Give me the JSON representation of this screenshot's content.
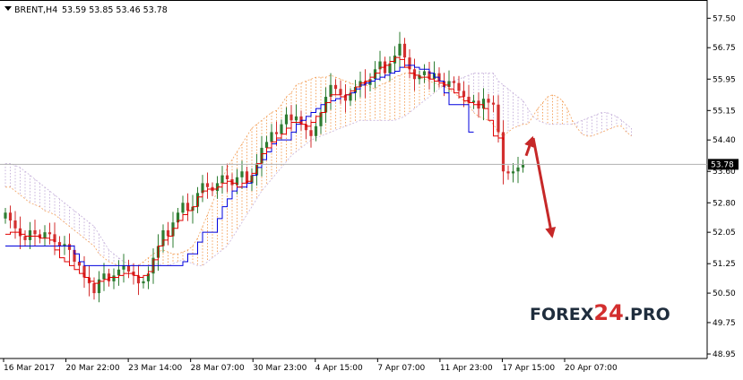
{
  "chart_data": {
    "type": "candlestick",
    "title": "",
    "symbol_label": "BRENT,H4",
    "ohlc_label": "53.59 53.85 53.46 53.78",
    "current_price": 53.78,
    "current_price_label": "53.78",
    "ylim": [
      48.95,
      57.85
    ],
    "y_ticks": [
      "57.50",
      "56.75",
      "55.95",
      "55.15",
      "54.40",
      "53.60",
      "52.80",
      "52.05",
      "51.25",
      "50.50",
      "49.75",
      "48.95"
    ],
    "x_ticks": [
      "16 Mar 2017",
      "20 Mar 22:00",
      "23 Mar 14:00",
      "28 Mar 07:00",
      "30 Mar 23:00",
      "4 Apr 15:00",
      "7 Apr 07:00",
      "11 Apr 23:00",
      "17 Apr 15:00",
      "20 Apr 07:00"
    ],
    "grid": false,
    "colors": {
      "bull": "#2e7d32",
      "bear": "#d32f2f",
      "tenkan": "#e00000",
      "kijun": "#0000dd",
      "cloud_bull": "#f4a460",
      "cloud_bear": "#c8b4dc",
      "arrow": "#c62828"
    },
    "close_series": [
      52.55,
      52.35,
      52.15,
      51.95,
      51.85,
      52.1,
      52.0,
      51.9,
      52.05,
      52.0,
      51.8,
      51.7,
      51.75,
      51.6,
      51.3,
      51.2,
      50.9,
      50.75,
      50.5,
      50.85,
      51.0,
      50.8,
      50.95,
      51.1,
      51.2,
      51.05,
      50.95,
      50.75,
      50.8,
      51.0,
      51.4,
      51.7,
      52.1,
      51.95,
      52.3,
      52.55,
      52.8,
      52.6,
      52.7,
      53.05,
      53.3,
      53.2,
      53.1,
      53.3,
      53.5,
      53.4,
      53.25,
      53.45,
      53.6,
      53.3,
      53.5,
      53.8,
      54.2,
      54.35,
      54.6,
      54.55,
      54.8,
      55.05,
      54.9,
      55.0,
      54.8,
      54.65,
      54.5,
      54.75,
      55.1,
      55.5,
      55.8,
      55.7,
      55.55,
      55.4,
      55.6,
      55.75,
      55.9,
      55.8,
      55.95,
      56.2,
      56.4,
      56.1,
      56.35,
      56.55,
      56.85,
      56.5,
      56.2,
      55.95,
      56.05,
      56.15,
      55.95,
      56.1,
      55.9,
      55.75,
      55.9,
      55.85,
      55.65,
      55.5,
      55.35,
      55.4,
      55.2,
      55.45,
      55.35,
      55.3,
      54.6,
      53.6,
      53.55,
      53.6,
      53.7,
      53.78
    ],
    "tenkan_series": [
      52.0,
      52.05,
      52.05,
      52.0,
      51.95,
      51.95,
      51.95,
      51.9,
      51.9,
      51.85,
      51.6,
      51.4,
      51.3,
      51.2,
      51.1,
      51.0,
      50.9,
      50.8,
      50.75,
      50.8,
      50.85,
      50.9,
      50.9,
      50.95,
      51.0,
      51.0,
      50.95,
      50.9,
      50.95,
      51.05,
      51.35,
      51.7,
      51.85,
      51.95,
      52.15,
      52.35,
      52.5,
      52.6,
      52.7,
      52.95,
      53.1,
      53.15,
      53.15,
      53.2,
      53.3,
      53.35,
      53.3,
      53.2,
      53.3,
      53.35,
      53.55,
      53.8,
      54.05,
      54.2,
      54.35,
      54.45,
      54.55,
      54.7,
      54.85,
      54.85,
      54.8,
      54.75,
      54.85,
      55.0,
      55.1,
      55.35,
      55.55,
      55.55,
      55.5,
      55.55,
      55.65,
      55.75,
      55.85,
      55.9,
      56.0,
      56.1,
      56.25,
      56.3,
      56.4,
      56.5,
      56.45,
      56.25,
      56.1,
      56.05,
      56.0,
      56.0,
      55.95,
      55.9,
      55.85,
      55.8,
      55.7,
      55.6,
      55.5,
      55.4,
      55.35,
      55.3,
      55.3,
      55.2,
      54.9,
      54.5,
      54.45,
      54.4
    ],
    "kijun_series": [
      51.7,
      51.7,
      51.7,
      51.7,
      51.7,
      51.7,
      51.7,
      51.7,
      51.7,
      51.7,
      51.7,
      51.7,
      51.7,
      51.7,
      51.5,
      51.3,
      51.2,
      51.2,
      51.2,
      51.2,
      51.2,
      51.2,
      51.2,
      51.2,
      51.2,
      51.2,
      51.2,
      51.2,
      51.2,
      51.2,
      51.2,
      51.2,
      51.2,
      51.2,
      51.2,
      51.2,
      51.3,
      51.5,
      51.5,
      51.8,
      52.05,
      52.05,
      52.05,
      52.4,
      52.7,
      52.9,
      53.1,
      53.2,
      53.2,
      53.3,
      53.5,
      53.7,
      53.9,
      54.1,
      54.3,
      54.4,
      54.4,
      54.4,
      54.6,
      54.8,
      54.9,
      55.0,
      55.1,
      55.2,
      55.3,
      55.35,
      55.4,
      55.45,
      55.5,
      55.55,
      55.6,
      55.7,
      55.8,
      55.85,
      55.9,
      55.95,
      56.0,
      56.05,
      56.1,
      56.15,
      56.25,
      56.3,
      56.3,
      56.25,
      56.2,
      56.2,
      56.1,
      56.0,
      55.9,
      55.6,
      55.3,
      55.3,
      55.3,
      55.3,
      54.6,
      54.6
    ],
    "cloud_span_a": [
      53.2,
      53.2,
      53.1,
      53.0,
      52.9,
      52.8,
      52.75,
      52.7,
      52.6,
      52.55,
      52.5,
      52.4,
      52.3,
      52.2,
      52.1,
      52.0,
      51.9,
      51.8,
      51.7,
      51.5,
      51.4,
      51.3,
      51.25,
      51.2,
      51.2,
      51.2,
      51.2,
      51.2,
      51.3,
      51.4,
      51.5,
      51.55,
      51.6,
      51.55,
      51.5,
      51.5,
      51.55,
      51.6,
      51.7,
      51.9,
      52.2,
      52.5,
      52.8,
      53.1,
      53.4,
      53.7,
      53.9,
      54.1,
      54.3,
      54.5,
      54.7,
      54.8,
      54.9,
      55.0,
      55.1,
      55.15,
      55.3,
      55.5,
      55.6,
      55.8,
      55.85,
      55.9,
      55.95,
      56.0,
      56.0,
      56.0,
      56.05,
      56.0,
      55.95,
      55.9,
      55.85,
      55.8,
      55.8,
      55.8,
      55.75,
      55.7,
      55.8,
      55.85,
      55.9,
      56.0,
      56.05,
      56.1,
      56.1,
      56.05,
      56.0,
      55.95,
      55.9,
      55.85,
      55.8,
      55.75,
      55.7,
      55.6,
      55.5,
      55.4,
      55.3,
      55.1,
      55.0,
      54.95,
      54.9,
      54.8,
      54.6,
      54.5,
      54.6,
      54.7,
      54.75,
      54.8,
      54.8,
      55.0,
      55.2,
      55.35,
      55.5,
      55.55,
      55.5,
      55.4,
      55.2,
      54.9,
      54.7,
      54.55,
      54.5,
      54.5,
      54.55,
      54.6,
      54.65,
      54.7,
      54.75,
      54.75,
      54.6,
      54.5
    ],
    "cloud_span_b": [
      53.8,
      53.8,
      53.75,
      53.7,
      53.6,
      53.5,
      53.4,
      53.3,
      53.2,
      53.1,
      53.0,
      52.9,
      52.8,
      52.7,
      52.6,
      52.5,
      52.4,
      52.3,
      52.2,
      52.0,
      51.8,
      51.6,
      51.5,
      51.4,
      51.3,
      51.25,
      51.2,
      51.2,
      51.2,
      51.2,
      51.25,
      51.25,
      51.2,
      51.2,
      51.25,
      51.3,
      51.35,
      51.3,
      51.25,
      51.2,
      51.2,
      51.3,
      51.4,
      51.5,
      51.6,
      51.7,
      51.9,
      52.1,
      52.3,
      52.5,
      52.7,
      52.9,
      53.1,
      53.25,
      53.4,
      53.55,
      53.7,
      53.85,
      54.0,
      54.1,
      54.2,
      54.3,
      54.4,
      54.45,
      54.5,
      54.55,
      54.6,
      54.65,
      54.7,
      54.75,
      54.8,
      54.85,
      54.9,
      54.9,
      54.9,
      54.9,
      54.9,
      54.9,
      54.9,
      54.9,
      54.95,
      55.0,
      55.1,
      55.2,
      55.3,
      55.4,
      55.5,
      55.6,
      55.7,
      55.8,
      55.85,
      55.9,
      55.95,
      56.0,
      56.05,
      56.1,
      56.1,
      56.1,
      56.1,
      56.1,
      55.9,
      55.8,
      55.7,
      55.6,
      55.5,
      55.4,
      55.2,
      55.0,
      54.9,
      54.85,
      54.8,
      54.8,
      54.8,
      54.8,
      54.8,
      54.8,
      54.85,
      54.9,
      54.95,
      55.0,
      55.05,
      55.1,
      55.1,
      55.05,
      55.0,
      54.9,
      54.8,
      54.7
    ],
    "forecast_arrows": [
      {
        "from": 54.0,
        "to": 54.45
      },
      {
        "from": 54.45,
        "to": 51.95
      }
    ]
  },
  "watermark": {
    "part_a": "FOREX",
    "part_b": "24",
    "part_c": ".PRO",
    "color_a": "#1f2d3d",
    "color_b": "#d32f2f",
    "color_c": "#1f2d3d"
  }
}
